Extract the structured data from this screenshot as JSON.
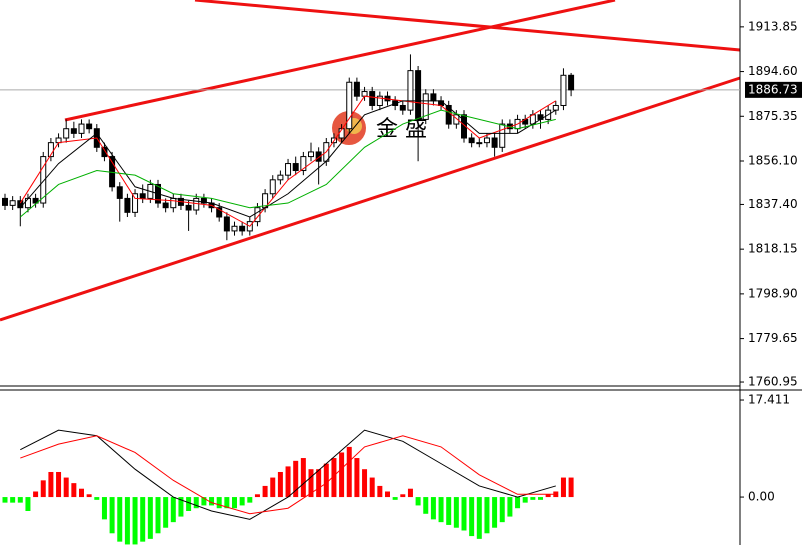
{
  "chart_data": [
    {
      "type": "candlestick",
      "ylim": [
        1759.24,
        1925.41
      ],
      "yticks": [
        1913.85,
        {
          "value": 1894.6,
          "label": "1894.60"
        },
        1875.35,
        {
          "value": 1856.1,
          "label": "1856.10"
        },
        {
          "value": 1837.4,
          "label": "1837.40"
        },
        1818.15,
        {
          "value": 1798.9,
          "label": "1798.90"
        },
        1779.65,
        1760.95
      ],
      "current_price": 1886.73,
      "watermark": "金 盛",
      "open": [
        1840,
        1837,
        1839,
        1836,
        1840,
        1838,
        1858,
        1864,
        1866,
        1870,
        1868,
        1872,
        1870,
        1862,
        1858,
        1845,
        1840,
        1834,
        1842,
        1840,
        1846,
        1838,
        1836,
        1840,
        1837,
        1835,
        1840,
        1838,
        1836,
        1832,
        1826,
        1828,
        1826,
        1830,
        1836,
        1842,
        1848,
        1850,
        1855,
        1852,
        1858,
        1860,
        1856,
        1864,
        1866,
        1870,
        1890,
        1884,
        1886,
        1880,
        1884,
        1882,
        1880,
        1878,
        1895,
        1874,
        1885,
        1882,
        1880,
        1872,
        1876,
        1866,
        1864,
        1864,
        1866,
        1862,
        1872,
        1870,
        1874,
        1872,
        1876,
        1874,
        1878,
        1880,
        1893
      ],
      "high": [
        1842,
        1841,
        1841,
        1842,
        1842,
        1860,
        1866,
        1868,
        1874,
        1873,
        1874,
        1874,
        1872,
        1864,
        1860,
        1847,
        1842,
        1844,
        1846,
        1848,
        1848,
        1840,
        1842,
        1842,
        1839,
        1842,
        1842,
        1840,
        1838,
        1834,
        1830,
        1830,
        1832,
        1838,
        1844,
        1850,
        1852,
        1857,
        1858,
        1860,
        1864,
        1862,
        1866,
        1868,
        1872,
        1892,
        1892,
        1888,
        1888,
        1886,
        1886,
        1884,
        1882,
        1902,
        1897,
        1887,
        1887,
        1884,
        1882,
        1878,
        1878,
        1868,
        1866,
        1868,
        1868,
        1874,
        1874,
        1876,
        1876,
        1878,
        1878,
        1880,
        1882,
        1896,
        1894
      ],
      "low": [
        1835,
        1835,
        1828,
        1834,
        1836,
        1836,
        1856,
        1862,
        1864,
        1866,
        1866,
        1868,
        1860,
        1856,
        1843,
        1830,
        1832,
        1832,
        1838,
        1838,
        1836,
        1834,
        1834,
        1835,
        1826,
        1833,
        1836,
        1834,
        1830,
        1822,
        1824,
        1824,
        1824,
        1828,
        1834,
        1840,
        1846,
        1848,
        1850,
        1850,
        1856,
        1846,
        1854,
        1862,
        1864,
        1868,
        1882,
        1882,
        1878,
        1878,
        1880,
        1878,
        1876,
        1876,
        1856,
        1872,
        1880,
        1878,
        1870,
        1870,
        1864,
        1862,
        1862,
        1862,
        1858,
        1860,
        1868,
        1868,
        1870,
        1870,
        1870,
        1872,
        1876,
        1878,
        1884
      ],
      "close": [
        1837,
        1839,
        1836,
        1840,
        1838,
        1858,
        1864,
        1866,
        1870,
        1868,
        1872,
        1870,
        1862,
        1858,
        1845,
        1840,
        1834,
        1842,
        1840,
        1846,
        1838,
        1836,
        1840,
        1837,
        1835,
        1840,
        1838,
        1836,
        1832,
        1826,
        1828,
        1826,
        1830,
        1836,
        1842,
        1848,
        1850,
        1855,
        1852,
        1858,
        1860,
        1856,
        1864,
        1866,
        1870,
        1890,
        1884,
        1886,
        1880,
        1884,
        1882,
        1880,
        1878,
        1895,
        1874,
        1885,
        1882,
        1880,
        1872,
        1876,
        1866,
        1864,
        1864,
        1866,
        1862,
        1872,
        1870,
        1874,
        1872,
        1876,
        1874,
        1878,
        1880,
        1893,
        1886.73
      ],
      "series": [
        {
          "color": "#ff0000",
          "values": [
            1838,
            1864,
            1866,
            1840,
            1839,
            1837,
            1828,
            1848,
            1860,
            1884,
            1882,
            1880,
            1866,
            1872,
            1882
          ]
        },
        {
          "color": "#000000",
          "values": [
            1836,
            1855,
            1868,
            1845,
            1840,
            1838,
            1832,
            1842,
            1856,
            1876,
            1882,
            1882,
            1868,
            1868,
            1878
          ]
        },
        {
          "color": "#00b000",
          "values": [
            1832,
            1846,
            1852,
            1850,
            1842,
            1840,
            1836,
            1838,
            1846,
            1862,
            1872,
            1878,
            1874,
            1870,
            1874
          ]
        }
      ]
    },
    {
      "type": "macd",
      "ylim": [
        -8.6,
        18.85
      ],
      "yticks": [
        17.411,
        {
          "value": 0,
          "label": "0.00"
        }
      ],
      "up_color": "#ff0000",
      "down_color": "#00ff00",
      "values": [
        -1,
        -1,
        -1,
        -2.5,
        1,
        3,
        4.5,
        4.5,
        3.5,
        2.5,
        1.5,
        0.5,
        -0.5,
        -4,
        -6.5,
        -8,
        -8.5,
        -8.5,
        -8,
        -7.5,
        -6.5,
        -5.5,
        -4.5,
        -3.5,
        -2.5,
        -2,
        -1.5,
        -1.5,
        -2,
        -2,
        -2,
        -1.5,
        -1,
        0.5,
        2,
        3.5,
        4.5,
        5.5,
        6.5,
        7,
        5,
        5,
        6,
        7,
        8,
        9,
        7,
        5,
        3.5,
        2,
        1,
        -0.5,
        0.5,
        1.5,
        -1.5,
        -3,
        -4,
        -4.5,
        -5,
        -5.5,
        -6,
        -7,
        -7.5,
        -6.5,
        -5.5,
        -4.5,
        -3.5,
        -2,
        -1,
        -0.5,
        -0.5,
        0.5,
        1,
        3.5,
        3.5
      ],
      "series": [
        {
          "color": "#000000",
          "values": [
            8.5,
            12,
            11,
            5,
            0,
            -2.5,
            -4,
            0,
            6,
            12,
            10,
            6,
            2,
            0,
            2
          ]
        },
        {
          "color": "#ff0000",
          "values": [
            7,
            9.5,
            11,
            8,
            3,
            -1,
            -3,
            -2,
            2.5,
            9,
            11,
            9,
            4,
            0.5,
            0.5
          ]
        }
      ]
    }
  ]
}
